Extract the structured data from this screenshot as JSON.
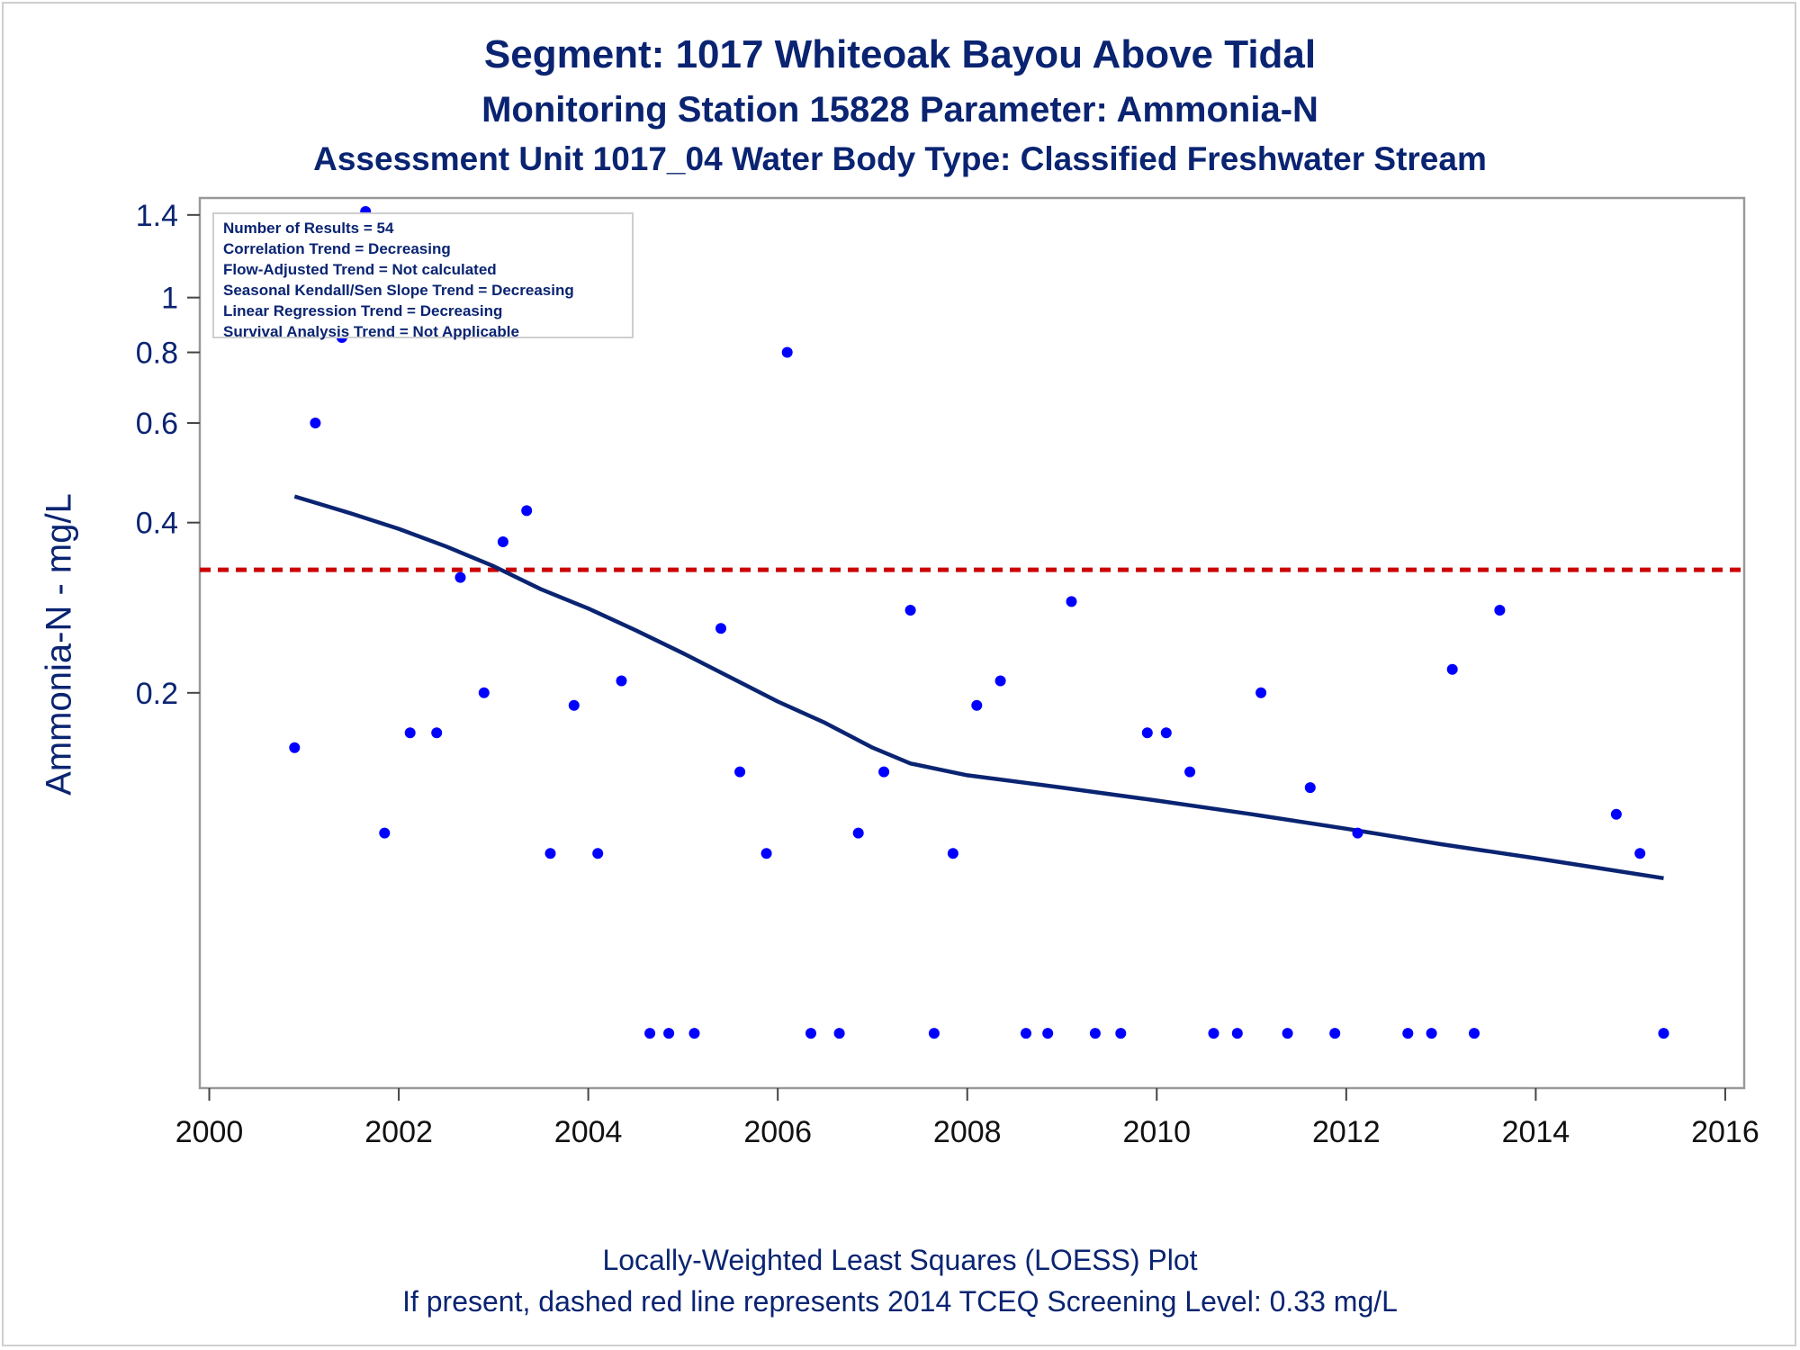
{
  "header": {
    "title": "Segment: 1017  Whiteoak Bayou Above Tidal",
    "subtitle": "Monitoring Station 15828 Parameter: Ammonia-N",
    "subtitle2": "Assessment Unit 1017_04   Water Body Type: Classified Freshwater Stream"
  },
  "stats": [
    "Number of Results = 54",
    "Correlation Trend = Decreasing",
    "Flow-Adjusted Trend = Not calculated",
    "Seasonal Kendall/Sen Slope Trend = Decreasing",
    "Linear Regression Trend = Decreasing",
    "Survival Analysis Trend = Not Applicable"
  ],
  "footer": {
    "line1": "Locally-Weighted Least Squares (LOESS) Plot",
    "line2": "If present, dashed red line represents 2014 TCEQ Screening Level: 0.33 mg/L"
  },
  "colors": {
    "text": "#0a2472",
    "points": "#0000ff",
    "loess": "#0a2472",
    "screening": "#cc0000",
    "axis": "#999999"
  },
  "chart_data": {
    "type": "scatter",
    "title": "Segment: 1017  Whiteoak Bayou Above Tidal",
    "xlabel": "",
    "ylabel": "Ammonia-N - mg/L",
    "y_scale": "log",
    "xlim": [
      1999.9,
      2016.2
    ],
    "ylim": [
      0.04,
      1.5
    ],
    "x_ticks": [
      2000,
      2002,
      2004,
      2006,
      2008,
      2010,
      2012,
      2014,
      2016
    ],
    "y_ticks": [
      0.2,
      0.4,
      0.6,
      0.8,
      1,
      1.4
    ],
    "y_tick_labels": [
      "0.2",
      "0.4",
      "0.6",
      "0.8",
      "1",
      "1.4"
    ],
    "grid": false,
    "series": [
      {
        "name": "",
        "style": "points",
        "x": [
          2000.9,
          2001.12,
          2001.4,
          2001.65,
          2001.85,
          2002.12,
          2002.4,
          2002.65,
          2002.9,
          2003.1,
          2003.35,
          2003.6,
          2003.85,
          2004.1,
          2004.35,
          2004.65,
          2004.85,
          2005.12,
          2005.4,
          2005.6,
          2005.88,
          2006.1,
          2006.35,
          2006.65,
          2006.85,
          2007.12,
          2007.4,
          2007.65,
          2007.85,
          2008.1,
          2008.35,
          2008.62,
          2008.85,
          2009.1,
          2009.35,
          2009.62,
          2009.9,
          2010.1,
          2010.35,
          2010.6,
          2010.85,
          2011.1,
          2011.38,
          2011.62,
          2011.88,
          2012.12,
          2012.65,
          2012.9,
          2013.12,
          2013.35,
          2013.62,
          2014.85,
          2015.1,
          2015.35
        ],
        "y": [
          0.16,
          0.6,
          0.85,
          1.42,
          0.113,
          0.17,
          0.17,
          0.32,
          0.2,
          0.37,
          0.42,
          0.104,
          0.19,
          0.104,
          0.21,
          0.05,
          0.05,
          0.05,
          0.26,
          0.145,
          0.104,
          0.8,
          0.05,
          0.05,
          0.113,
          0.145,
          0.28,
          0.05,
          0.104,
          0.19,
          0.21,
          0.05,
          0.05,
          0.29,
          0.05,
          0.05,
          0.17,
          0.17,
          0.145,
          0.05,
          0.05,
          0.2,
          0.05,
          0.136,
          0.05,
          0.113,
          0.05,
          0.05,
          0.22,
          0.05,
          0.28,
          0.122,
          0.104,
          0.05
        ]
      },
      {
        "name": "LOESS",
        "style": "line",
        "x": [
          2000.9,
          2001.5,
          2002.0,
          2002.5,
          2003.0,
          2003.5,
          2004.0,
          2004.5,
          2005.0,
          2005.5,
          2006.0,
          2006.5,
          2007.0,
          2007.4,
          2008.0,
          2009.0,
          2010.0,
          2011.0,
          2012.0,
          2013.0,
          2014.0,
          2015.35
        ],
        "y": [
          0.445,
          0.415,
          0.39,
          0.363,
          0.335,
          0.305,
          0.282,
          0.258,
          0.235,
          0.213,
          0.193,
          0.177,
          0.16,
          0.15,
          0.143,
          0.136,
          0.129,
          0.122,
          0.115,
          0.108,
          0.102,
          0.094
        ]
      }
    ],
    "reference_line": {
      "y": 0.33,
      "style": "dashed"
    }
  }
}
